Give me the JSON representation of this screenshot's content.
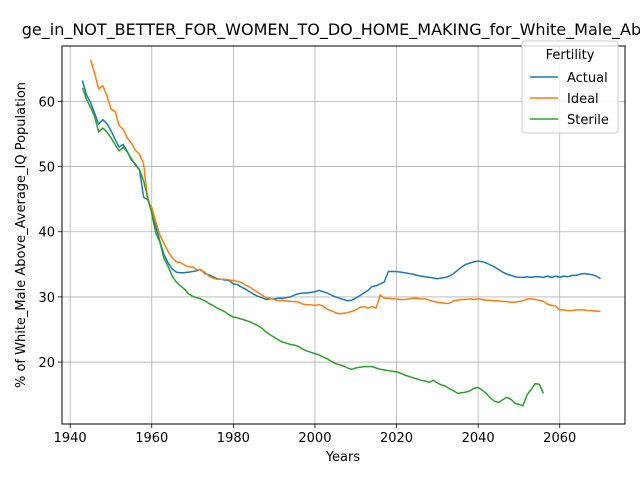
{
  "chart_data": {
    "type": "line",
    "title": "ge_in_NOT_BETTER_FOR_WOMEN_TO_DO_HOME_MAKING_for_White_Male_Above",
    "xlabel": "Years",
    "ylabel": "% of White_Male Above_Average_IQ Population",
    "xlim": [
      1938,
      2076
    ],
    "ylim": [
      10.5,
      68.5
    ],
    "xticks": [
      1940,
      1960,
      1980,
      2000,
      2020,
      2040,
      2060
    ],
    "yticks": [
      20,
      30,
      40,
      50,
      60
    ],
    "grid": true,
    "legend": {
      "title": "Fertility",
      "placement": "top-right"
    },
    "series": [
      {
        "name": "Actual",
        "color": "#1f77b4",
        "x": [
          1943,
          1944,
          1945,
          1946,
          1947,
          1948,
          1949,
          1950,
          1951,
          1952,
          1953,
          1954,
          1955,
          1956,
          1957,
          1958,
          1959,
          1960,
          1961,
          1962,
          1963,
          1964,
          1965,
          1966,
          1967,
          1968,
          1969,
          1970,
          1971,
          1972,
          1973,
          1974,
          1975,
          1976,
          1977,
          1978,
          1979,
          1980,
          1981,
          1982,
          1983,
          1984,
          1985,
          1986,
          1987,
          1988,
          1989,
          1990,
          1991,
          1992,
          1993,
          1994,
          1995,
          1996,
          1997,
          1998,
          1999,
          2000,
          2001,
          2002,
          2003,
          2004,
          2005,
          2006,
          2007,
          2008,
          2009,
          2010,
          2011,
          2012,
          2013,
          2014,
          2015,
          2016,
          2017,
          2018,
          2019,
          2020,
          2021,
          2022,
          2023,
          2024,
          2025,
          2026,
          2027,
          2028,
          2029,
          2030,
          2031,
          2032,
          2033,
          2034,
          2035,
          2036,
          2037,
          2038,
          2039,
          2040,
          2041,
          2042,
          2043,
          2044,
          2045,
          2046,
          2047,
          2048,
          2049,
          2050,
          2051,
          2052,
          2053,
          2054,
          2055,
          2056,
          2057,
          2058,
          2059,
          2060,
          2061,
          2062,
          2063,
          2064,
          2065,
          2066,
          2067,
          2068,
          2069,
          2070
        ],
        "y": [
          63.2,
          61,
          59.8,
          58.2,
          56.5,
          57.2,
          56.6,
          55.5,
          54.2,
          53,
          53.4,
          52.3,
          51,
          50.4,
          49.5,
          45.3,
          44.9,
          43.2,
          40.8,
          38.5,
          36.5,
          35.2,
          34.3,
          33.8,
          33.7,
          33.7,
          33.8,
          33.9,
          34,
          34.2,
          33.6,
          33.4,
          33.1,
          32.8,
          32.7,
          32.6,
          32.5,
          32,
          31.9,
          31.5,
          31.2,
          30.8,
          30.4,
          30.1,
          29.9,
          29.6,
          29.7,
          29.7,
          29.8,
          29.8,
          29.9,
          30,
          30.3,
          30.5,
          30.6,
          30.6,
          30.7,
          30.8,
          31,
          30.8,
          30.6,
          30.3,
          30,
          29.8,
          29.6,
          29.4,
          29.5,
          29.8,
          30.2,
          30.6,
          31,
          31.6,
          31.7,
          32,
          32.3,
          33.9,
          33.9,
          33.9,
          33.8,
          33.7,
          33.6,
          33.5,
          33.3,
          33.2,
          33.1,
          33,
          32.9,
          32.8,
          32.9,
          33,
          33.2,
          33.6,
          34.1,
          34.6,
          35,
          35.2,
          35.4,
          35.5,
          35.4,
          35.2,
          34.9,
          34.6,
          34.2,
          33.8,
          33.5,
          33.3,
          33.1,
          33,
          33,
          33.1,
          33,
          33.1,
          33.1,
          33,
          33.2,
          33,
          33.2,
          33,
          33.2,
          33.1,
          33.3,
          33.3,
          33.5,
          33.6,
          33.5,
          33.4,
          33.2,
          32.8
        ]
      },
      {
        "name": "Ideal",
        "color": "#ff7f0e",
        "x": [
          1945,
          1946,
          1947,
          1948,
          1949,
          1950,
          1951,
          1952,
          1953,
          1954,
          1955,
          1956,
          1957,
          1958,
          1959,
          1960,
          1961,
          1962,
          1963,
          1964,
          1965,
          1966,
          1967,
          1968,
          1969,
          1970,
          1971,
          1972,
          1973,
          1974,
          1975,
          1976,
          1977,
          1978,
          1979,
          1980,
          1981,
          1982,
          1983,
          1984,
          1985,
          1986,
          1987,
          1988,
          1989,
          1990,
          1991,
          1992,
          1993,
          1994,
          1995,
          1996,
          1997,
          1998,
          1999,
          2000,
          2001,
          2002,
          2003,
          2004,
          2005,
          2006,
          2007,
          2008,
          2009,
          2010,
          2011,
          2012,
          2013,
          2014,
          2015,
          2016,
          2017,
          2018,
          2019,
          2020,
          2021,
          2022,
          2023,
          2024,
          2025,
          2026,
          2027,
          2028,
          2029,
          2030,
          2031,
          2032,
          2033,
          2034,
          2035,
          2036,
          2037,
          2038,
          2039,
          2040,
          2041,
          2042,
          2043,
          2044,
          2045,
          2046,
          2047,
          2048,
          2049,
          2050,
          2051,
          2052,
          2053,
          2054,
          2055,
          2056,
          2057,
          2058,
          2059,
          2060,
          2061,
          2062,
          2063,
          2064,
          2065,
          2066,
          2067,
          2068,
          2069,
          2070
        ],
        "y": [
          66.4,
          64.3,
          61.9,
          62.4,
          60.9,
          58.8,
          58.5,
          56.3,
          55.7,
          54.4,
          53.6,
          52.5,
          51.9,
          50.4,
          44.8,
          43.7,
          41.5,
          39.5,
          38.2,
          37,
          36,
          35.4,
          35.3,
          34.9,
          34.6,
          34.6,
          34.2,
          34.1,
          33.8,
          33.2,
          32.9,
          32.7,
          32.7,
          32.7,
          32.6,
          32.5,
          32.4,
          32.2,
          31.8,
          31.5,
          31.1,
          30.7,
          30.3,
          29.9,
          29.8,
          29.6,
          29.4,
          29.5,
          29.4,
          29.3,
          29.3,
          29.2,
          28.9,
          28.8,
          28.8,
          28.7,
          28.8,
          28.6,
          28.1,
          27.9,
          27.6,
          27.4,
          27.5,
          27.6,
          27.8,
          28,
          28.4,
          28.5,
          28.3,
          28.5,
          28.3,
          30.3,
          29.8,
          29.8,
          29.7,
          29.7,
          29.6,
          29.6,
          29.7,
          29.8,
          29.8,
          29.7,
          29.7,
          29.5,
          29.3,
          29.2,
          29.1,
          29,
          29,
          29.4,
          29.5,
          29.6,
          29.6,
          29.7,
          29.6,
          29.7,
          29.6,
          29.5,
          29.5,
          29.4,
          29.4,
          29.3,
          29.3,
          29.2,
          29.2,
          29.3,
          29.4,
          29.7,
          29.7,
          29.6,
          29.5,
          29.3,
          28.9,
          28.7,
          28.6,
          28,
          28,
          27.9,
          27.9,
          28,
          28,
          28,
          27.9,
          27.9,
          27.8,
          27.8
        ]
      },
      {
        "name": "Sterile",
        "color": "#2ca02c",
        "x": [
          1943,
          1944,
          1945,
          1946,
          1947,
          1948,
          1949,
          1950,
          1951,
          1952,
          1953,
          1954,
          1955,
          1956,
          1957,
          1958,
          1959,
          1960,
          1961,
          1962,
          1963,
          1964,
          1965,
          1966,
          1967,
          1968,
          1969,
          1970,
          1971,
          1972,
          1973,
          1974,
          1975,
          1976,
          1977,
          1978,
          1979,
          1980,
          1981,
          1982,
          1983,
          1984,
          1985,
          1986,
          1987,
          1988,
          1989,
          1990,
          1991,
          1992,
          1993,
          1994,
          1995,
          1996,
          1997,
          1998,
          1999,
          2000,
          2001,
          2002,
          2003,
          2004,
          2005,
          2006,
          2007,
          2008,
          2009,
          2010,
          2011,
          2012,
          2013,
          2014,
          2015,
          2016,
          2017,
          2018,
          2019,
          2020,
          2021,
          2022,
          2023,
          2024,
          2025,
          2026,
          2027,
          2028,
          2029,
          2030,
          2031,
          2032,
          2033,
          2034,
          2035,
          2036,
          2037,
          2038,
          2039,
          2040,
          2041,
          2042,
          2043,
          2044,
          2045,
          2046,
          2047,
          2048,
          2049,
          2050,
          2051,
          2052,
          2053,
          2054,
          2055,
          2056
        ],
        "y": [
          62.1,
          60.3,
          59.1,
          57.7,
          55.3,
          55.9,
          55.3,
          54.4,
          53.4,
          52.4,
          53,
          52.2,
          51.2,
          50.2,
          49.5,
          47.8,
          45.3,
          42.7,
          39.8,
          38.4,
          35.9,
          34.7,
          33.2,
          32.3,
          31.7,
          31.2,
          30.5,
          30.1,
          29.9,
          29.7,
          29.4,
          29,
          28.7,
          28.3,
          28,
          27.7,
          27.2,
          26.9,
          26.8,
          26.6,
          26.4,
          26.2,
          25.9,
          25.6,
          25.2,
          24.6,
          24.2,
          23.8,
          23.4,
          23.1,
          22.9,
          22.7,
          22.6,
          22.4,
          22,
          21.7,
          21.5,
          21.3,
          21.1,
          20.8,
          20.5,
          20.1,
          19.8,
          19.6,
          19.4,
          19.1,
          18.9,
          19.1,
          19.2,
          19.3,
          19.3,
          19.3,
          19.1,
          18.9,
          18.8,
          18.7,
          18.6,
          18.5,
          18.3,
          18,
          17.8,
          17.6,
          17.4,
          17.2,
          17.1,
          16.9,
          17.2,
          16.8,
          16.5,
          16.3,
          15.9,
          15.6,
          15.2,
          15.3,
          15.4,
          15.6,
          16,
          16.1,
          15.7,
          15.2,
          14.5,
          14,
          13.8,
          14.2,
          14.6,
          14.3,
          13.7,
          13.5,
          13.3,
          15,
          15.8,
          16.7,
          16.6,
          15.2
        ]
      }
    ]
  }
}
